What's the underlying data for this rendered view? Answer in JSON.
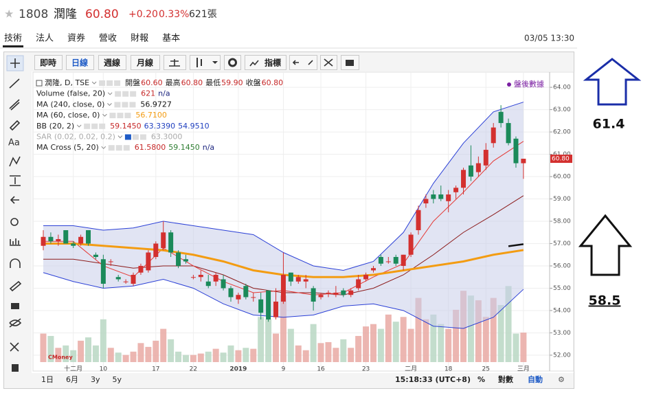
{
  "header": {
    "code": "1808",
    "name": "潤隆",
    "price": "60.80",
    "change": "+0.20",
    "pct": "0.33%",
    "volume": "621張"
  },
  "tabs": [
    "技術",
    "法人",
    "資券",
    "營收",
    "財報",
    "基本"
  ],
  "datetime": "03/05 13:30",
  "toolbar": [
    "即時",
    "日線",
    "週線",
    "月線",
    "指標"
  ],
  "chart_data": {
    "type": "candlestick",
    "symbol": "潤隆, D, TSE",
    "ohlc_legend": [
      {
        "label": "開盤",
        "value": "60.60"
      },
      {
        "label": "最高",
        "value": "60.80"
      },
      {
        "label": "最低",
        "value": "59.90"
      },
      {
        "label": "收盤",
        "value": "60.80"
      }
    ],
    "after_hours": "盤後數據",
    "indicators": [
      {
        "name": "Volume (false, 20)",
        "values": [
          "621",
          "n/a"
        ],
        "colors": [
          "#c62828",
          "#1a237e"
        ]
      },
      {
        "name": "MA (240, close, 0)",
        "values": [
          "56.9727"
        ],
        "colors": [
          "#111111"
        ]
      },
      {
        "name": "MA (60, close, 0)",
        "values": [
          "56.7100"
        ],
        "colors": [
          "#f39c12"
        ]
      },
      {
        "name": "BB (20, 2)",
        "values": [
          "59.1450",
          "63.3390",
          "54.9510"
        ],
        "colors": [
          "#c62828",
          "#1f3fbf",
          "#1f3fbf"
        ]
      },
      {
        "name": "SAR (0.02, 0.02, 0.2)",
        "values": [
          "63.3000"
        ],
        "colors": [
          "#aaaaaa"
        ]
      },
      {
        "name": "MA Cross (5, 20)",
        "values": [
          "61.5800",
          "59.1450",
          "n/a"
        ],
        "colors": [
          "#c62828",
          "#2e7d32",
          "#1a237e"
        ]
      }
    ],
    "categories": [
      null,
      null,
      null,
      null,
      "十二月",
      null,
      null,
      null,
      "10",
      null,
      null,
      null,
      null,
      null,
      null,
      "17",
      null,
      null,
      null,
      null,
      "22",
      null,
      null,
      null,
      null,
      null,
      "2019",
      null,
      null,
      null,
      null,
      null,
      "9",
      null,
      null,
      null,
      null,
      "16",
      null,
      null,
      null,
      null,
      null,
      "23",
      null,
      null,
      null,
      null,
      null,
      "二月",
      null,
      null,
      null,
      null,
      "18",
      null,
      null,
      null,
      null,
      "25",
      null,
      null,
      null,
      null,
      "三月"
    ],
    "candles": [
      [
        56.9,
        57.6,
        56.7,
        57.3
      ],
      [
        57.3,
        57.5,
        57.0,
        57.1
      ],
      [
        57.1,
        57.4,
        56.9,
        57.2
      ],
      [
        57.6,
        57.6,
        57.0,
        57.0
      ],
      [
        57.0,
        57.1,
        56.8,
        56.9
      ],
      [
        57.0,
        57.4,
        56.9,
        57.3
      ],
      [
        57.6,
        57.6,
        56.9,
        57.0
      ],
      [
        56.5,
        56.6,
        56.3,
        56.4
      ],
      [
        56.3,
        56.5,
        55.0,
        55.2
      ],
      [
        56.2,
        56.3,
        56.0,
        56.2
      ],
      [
        55.5,
        55.6,
        55.3,
        55.4
      ],
      [
        55.3,
        55.4,
        55.2,
        55.3
      ],
      [
        55.2,
        55.7,
        55.1,
        55.6
      ],
      [
        55.7,
        56.1,
        55.6,
        56.0
      ],
      [
        55.8,
        56.7,
        55.7,
        56.6
      ],
      [
        56.4,
        57.1,
        56.3,
        57.0
      ],
      [
        56.8,
        58.0,
        56.7,
        57.5
      ],
      [
        57.5,
        57.6,
        56.4,
        56.6
      ],
      [
        56.6,
        56.7,
        55.9,
        56.0
      ],
      [
        56.3,
        56.5,
        56.1,
        56.2
      ],
      [
        55.5,
        55.6,
        55.4,
        55.5
      ],
      [
        55.5,
        55.8,
        55.3,
        55.6
      ],
      [
        55.3,
        55.6,
        55.0,
        55.1
      ],
      [
        55.3,
        55.7,
        55.1,
        55.6
      ],
      [
        55.4,
        55.6,
        54.9,
        55.0
      ],
      [
        55.0,
        55.1,
        54.4,
        54.6
      ],
      [
        54.5,
        54.8,
        54.3,
        54.7
      ],
      [
        55.1,
        55.2,
        54.5,
        54.6
      ],
      [
        54.6,
        54.8,
        54.4,
        54.6
      ],
      [
        54.5,
        54.8,
        53.6,
        53.9
      ],
      [
        54.9,
        54.9,
        53.5,
        53.6
      ],
      [
        53.7,
        55.0,
        53.6,
        54.4
      ],
      [
        54.4,
        56.6,
        54.3,
        55.6
      ],
      [
        55.7,
        55.7,
        55.1,
        55.3
      ],
      [
        55.3,
        55.6,
        55.2,
        55.5
      ],
      [
        55.3,
        55.6,
        55.0,
        55.4
      ],
      [
        55.0,
        55.1,
        54.0,
        54.4
      ],
      [
        54.6,
        54.8,
        54.5,
        54.7
      ],
      [
        54.8,
        54.9,
        54.6,
        54.8
      ],
      [
        54.7,
        55.1,
        54.6,
        54.8
      ],
      [
        54.9,
        55.0,
        54.6,
        54.7
      ],
      [
        54.7,
        55.0,
        54.6,
        54.9
      ],
      [
        55.0,
        55.6,
        54.9,
        55.4
      ],
      [
        55.4,
        55.7,
        55.3,
        55.6
      ],
      [
        55.8,
        56.0,
        55.7,
        55.9
      ],
      [
        56.4,
        56.5,
        56.0,
        56.1
      ],
      [
        56.2,
        56.4,
        56.1,
        56.2
      ],
      [
        56.4,
        56.5,
        56.0,
        56.1
      ],
      [
        56.0,
        56.5,
        55.8,
        56.5
      ],
      [
        56.5,
        57.5,
        56.4,
        57.4
      ],
      [
        57.6,
        58.7,
        57.4,
        58.5
      ],
      [
        58.8,
        59.2,
        58.6,
        59.0
      ],
      [
        59.2,
        59.4,
        58.8,
        59.0
      ],
      [
        59.2,
        59.6,
        58.9,
        59.0
      ],
      [
        58.9,
        59.4,
        58.4,
        59.2
      ],
      [
        59.3,
        59.6,
        59.0,
        59.5
      ],
      [
        59.5,
        60.4,
        59.2,
        60.3
      ],
      [
        60.5,
        61.4,
        59.8,
        60.0
      ],
      [
        60.2,
        60.9,
        60.0,
        60.6
      ],
      [
        60.5,
        61.5,
        60.3,
        61.2
      ],
      [
        61.5,
        62.4,
        61.3,
        62.2
      ],
      [
        62.9,
        63.2,
        62.2,
        62.4
      ],
      [
        62.4,
        62.6,
        61.4,
        61.5
      ],
      [
        61.7,
        61.8,
        60.4,
        60.6
      ],
      [
        60.6,
        60.8,
        59.9,
        60.8
      ]
    ],
    "up_color": "#d3302f",
    "down_color": "#1b8a5a",
    "volume": [
      600,
      550,
      300,
      350,
      250,
      450,
      520,
      350,
      900,
      300,
      200,
      150,
      220,
      400,
      320,
      450,
      700,
      480,
      220,
      150,
      150,
      180,
      220,
      280,
      200,
      350,
      250,
      300,
      280,
      950,
      900,
      600,
      1400,
      700,
      350,
      250,
      800,
      400,
      420,
      300,
      480,
      300,
      550,
      750,
      800,
      700,
      1000,
      850,
      950,
      700,
      1350,
      900,
      1000,
      800,
      700,
      1100,
      1500,
      1400,
      1300,
      950,
      1350,
      1200,
      1600,
      600,
      621
    ],
    "volume_lim": [
      0,
      6100
    ],
    "series": [
      {
        "color": "#2a3fd6",
        "x": [
          0,
          4,
          8,
          12,
          16,
          20,
          24,
          28,
          32,
          36,
          40,
          44,
          48,
          52,
          56,
          60,
          64
        ],
        "values": [
          57.8,
          57.8,
          57.6,
          57.7,
          58.0,
          57.8,
          57.6,
          57.4,
          56.6,
          56.0,
          55.8,
          56.2,
          57.5,
          59.7,
          61.5,
          62.9,
          63.339
        ]
      },
      {
        "color": "#2a3fd6",
        "x": [
          0,
          4,
          8,
          12,
          16,
          20,
          24,
          28,
          32,
          36,
          40,
          44,
          48,
          52,
          56,
          60,
          64
        ],
        "values": [
          55.7,
          55.3,
          55.0,
          55.1,
          55.4,
          55.0,
          54.3,
          53.8,
          53.7,
          53.8,
          54.2,
          54.3,
          54.0,
          53.3,
          53.2,
          53.7,
          54.951
        ]
      },
      {
        "color": "#8b1a1a",
        "x": [
          0,
          4,
          8,
          12,
          16,
          20,
          24,
          28,
          32,
          36,
          40,
          44,
          48,
          52,
          56,
          60,
          64
        ],
        "values": [
          56.3,
          56.3,
          56.1,
          55.9,
          56.0,
          56.0,
          55.6,
          55.0,
          54.8,
          54.8,
          54.7,
          55.0,
          55.6,
          56.5,
          57.5,
          58.3,
          59.145
        ]
      },
      {
        "color": "#e53935",
        "x": [
          0,
          4,
          8,
          12,
          16,
          20,
          24,
          28,
          32,
          36,
          40,
          44,
          48,
          52,
          56,
          60,
          64
        ],
        "values": [
          57.1,
          57.1,
          56.0,
          55.5,
          56.8,
          56.0,
          55.3,
          54.8,
          54.9,
          54.7,
          54.8,
          55.5,
          56.1,
          58.0,
          59.3,
          60.7,
          61.58
        ]
      },
      {
        "color": "#f39c12",
        "x": [
          0,
          4,
          8,
          12,
          16,
          20,
          24,
          28,
          32,
          36,
          40,
          44,
          48,
          52,
          56,
          60,
          64
        ],
        "values": [
          57.0,
          57.0,
          56.9,
          56.8,
          56.7,
          56.5,
          56.2,
          55.8,
          55.6,
          55.5,
          55.5,
          55.6,
          55.8,
          56.0,
          56.2,
          56.5,
          56.71
        ]
      },
      {
        "color": "#111111",
        "x": [
          62,
          64
        ],
        "values": [
          56.88,
          56.9727
        ]
      }
    ],
    "band_fill": "#c9cdea",
    "ylim": [
      51.29,
      64.68
    ],
    "yticks": [
      {
        "value": 52,
        "label": "52.00"
      },
      {
        "value": 53,
        "label": "53.00"
      },
      {
        "value": 54,
        "label": "54.00"
      },
      {
        "value": 55,
        "label": "55.00"
      },
      {
        "value": 56,
        "label": "56.00"
      },
      {
        "value": 57,
        "label": "57.00"
      },
      {
        "value": 58,
        "label": "58.00"
      },
      {
        "value": 59,
        "label": "59.00"
      },
      {
        "value": 60,
        "label": "60.00"
      },
      {
        "value": 61,
        "label": "61.00"
      },
      {
        "value": 62,
        "label": "62.00"
      },
      {
        "value": 63,
        "label": "63.00"
      },
      {
        "value": 64,
        "label": "64.00"
      }
    ],
    "last_price": {
      "value": 60.8,
      "label": "60.80"
    },
    "grid": true,
    "source": "CMoney"
  },
  "ranges": [
    "1日",
    "6月",
    "3y",
    "5y"
  ],
  "clock": "15:18:33 (UTC+8)",
  "options": [
    "%",
    "對數",
    "自動"
  ],
  "annotations": [
    "61.4",
    "58.5"
  ]
}
